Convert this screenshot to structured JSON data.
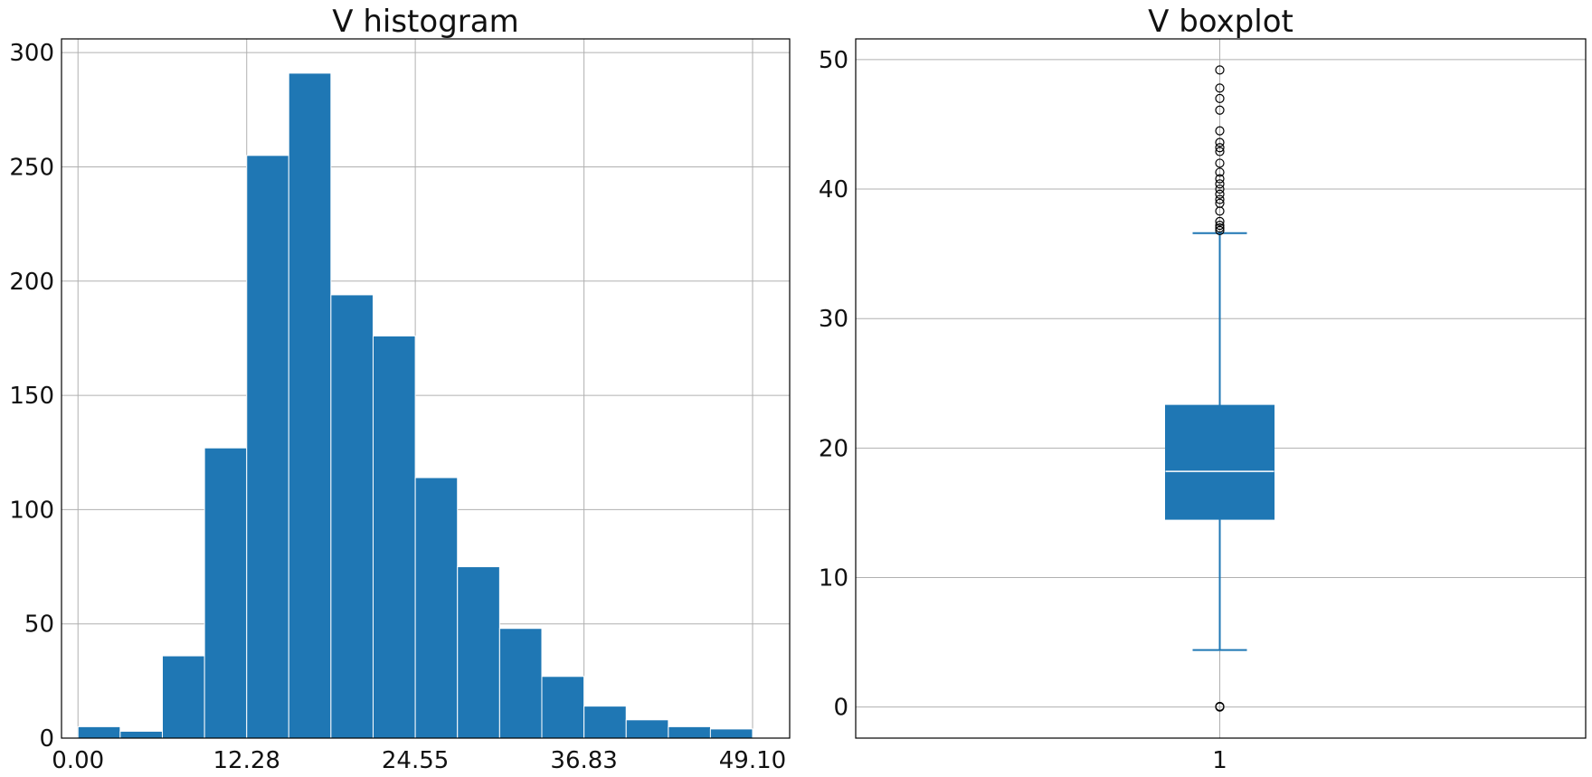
{
  "chart_data": [
    {
      "type": "bar",
      "title": "V histogram",
      "xlabel": "",
      "ylabel": "",
      "grid": true,
      "xlim": [
        -1.2,
        51.8
      ],
      "ylim": [
        0,
        306
      ],
      "xticks": [
        0.0,
        12.28,
        24.55,
        36.83,
        49.1
      ],
      "xtick_labels": [
        "0.00",
        "12.28",
        "24.55",
        "36.83",
        "49.10"
      ],
      "yticks": [
        0,
        50,
        100,
        150,
        200,
        250,
        300
      ],
      "ytick_labels": [
        "0",
        "50",
        "100",
        "150",
        "200",
        "250",
        "300"
      ],
      "bin_width": 3.069,
      "bin_starts": [
        0.0,
        3.07,
        6.14,
        9.21,
        12.28,
        15.34,
        18.41,
        21.48,
        24.55,
        27.62,
        30.69,
        33.76,
        36.83,
        39.9,
        42.97,
        46.03
      ],
      "values": [
        5,
        3,
        36,
        127,
        255,
        291,
        194,
        176,
        114,
        75,
        48,
        27,
        14,
        8,
        5,
        4
      ],
      "color": "#1f77b4"
    },
    {
      "type": "boxplot",
      "title": "V boxplot",
      "xlabel": "",
      "ylabel": "",
      "grid": true,
      "categories": [
        "1"
      ],
      "ylim": [
        -2.4,
        51.6
      ],
      "yticks": [
        0,
        10,
        20,
        30,
        40,
        50
      ],
      "ytick_labels": [
        "0",
        "10",
        "20",
        "30",
        "40",
        "50"
      ],
      "box": {
        "q1": 14.5,
        "median": 18.2,
        "q3": 23.3,
        "whisker_low": 4.4,
        "whisker_high": 36.6
      },
      "outliers": [
        0.0,
        0.05,
        36.8,
        37.0,
        37.2,
        37.5,
        38.3,
        38.9,
        39.2,
        39.6,
        40.0,
        40.4,
        40.8,
        41.3,
        42.0,
        42.9,
        43.2,
        43.6,
        44.5,
        46.1,
        47.0,
        47.8,
        49.2
      ],
      "color": "#1f77b4"
    }
  ]
}
